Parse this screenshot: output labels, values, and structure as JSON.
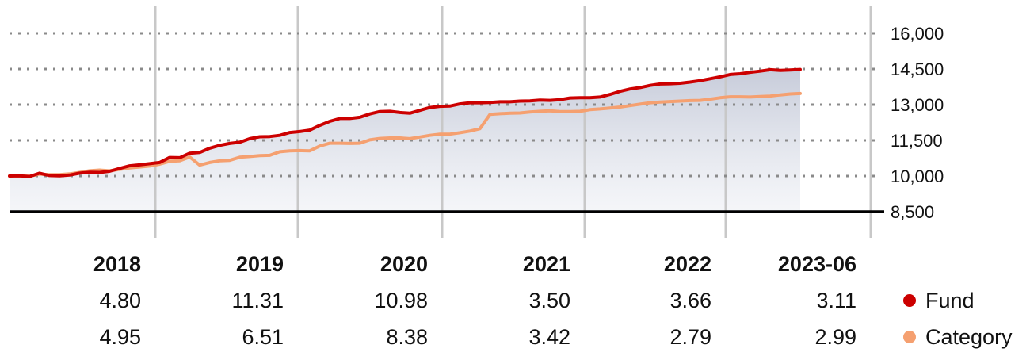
{
  "chart_data": {
    "type": "line",
    "ylim": [
      8500,
      17000
    ],
    "yticks": [
      {
        "value": 16000,
        "label": "16,000"
      },
      {
        "value": 14500,
        "label": "14,500"
      },
      {
        "value": 13000,
        "label": "13,000"
      },
      {
        "value": 11500,
        "label": "11,500"
      },
      {
        "value": 10000,
        "label": "10,000"
      },
      {
        "value": 8500,
        "label": "8,500"
      }
    ],
    "grid": true,
    "legend_position": "bottom-right",
    "x_start": "2017-01",
    "x_end": "2023-06",
    "series": [
      {
        "name": "Fund",
        "color": "#cc0000",
        "values": [
          10000,
          10010,
          9980,
          10120,
          10020,
          10010,
          10040,
          10120,
          10160,
          10150,
          10200,
          10320,
          10430,
          10470,
          10520,
          10570,
          10780,
          10770,
          10960,
          10990,
          11170,
          11290,
          11370,
          11420,
          11570,
          11650,
          11660,
          11710,
          11830,
          11870,
          11930,
          12130,
          12300,
          12420,
          12420,
          12470,
          12610,
          12710,
          12720,
          12670,
          12640,
          12760,
          12880,
          12930,
          12940,
          13030,
          13080,
          13080,
          13090,
          13120,
          13120,
          13150,
          13160,
          13190,
          13180,
          13210,
          13280,
          13290,
          13290,
          13320,
          13430,
          13560,
          13660,
          13720,
          13810,
          13870,
          13880,
          13900,
          13950,
          14010,
          14090,
          14170,
          14270,
          14300,
          14360,
          14410,
          14470,
          14440,
          14460,
          14480
        ]
      },
      {
        "name": "Category",
        "color": "#f5a070",
        "values": [
          10000,
          10010,
          9990,
          10080,
          10060,
          10060,
          10090,
          10150,
          10220,
          10250,
          10220,
          10280,
          10340,
          10380,
          10420,
          10500,
          10620,
          10640,
          10800,
          10460,
          10570,
          10640,
          10660,
          10790,
          10820,
          10860,
          10870,
          11020,
          11060,
          11070,
          11060,
          11260,
          11380,
          11380,
          11370,
          11380,
          11520,
          11580,
          11600,
          11600,
          11570,
          11640,
          11710,
          11760,
          11760,
          11820,
          11890,
          11990,
          12590,
          12620,
          12640,
          12650,
          12690,
          12720,
          12740,
          12710,
          12710,
          12720,
          12790,
          12820,
          12860,
          12900,
          12960,
          13020,
          13080,
          13110,
          13130,
          13150,
          13170,
          13180,
          13230,
          13290,
          13330,
          13330,
          13320,
          13340,
          13360,
          13410,
          13450,
          13470
        ]
      }
    ],
    "year_markers": [
      "2018",
      "2019",
      "2020",
      "2021",
      "2022"
    ],
    "periods": [
      "2018",
      "2019",
      "2020",
      "2021",
      "2022",
      "2023-06"
    ],
    "returns": [
      {
        "name": "Fund",
        "color": "#cc0000",
        "values": [
          "4.80",
          "11.31",
          "10.98",
          "3.50",
          "3.66",
          "3.11"
        ]
      },
      {
        "name": "Category",
        "color": "#f5a070",
        "values": [
          "4.95",
          "6.51",
          "8.38",
          "3.42",
          "2.79",
          "2.99"
        ]
      }
    ]
  }
}
